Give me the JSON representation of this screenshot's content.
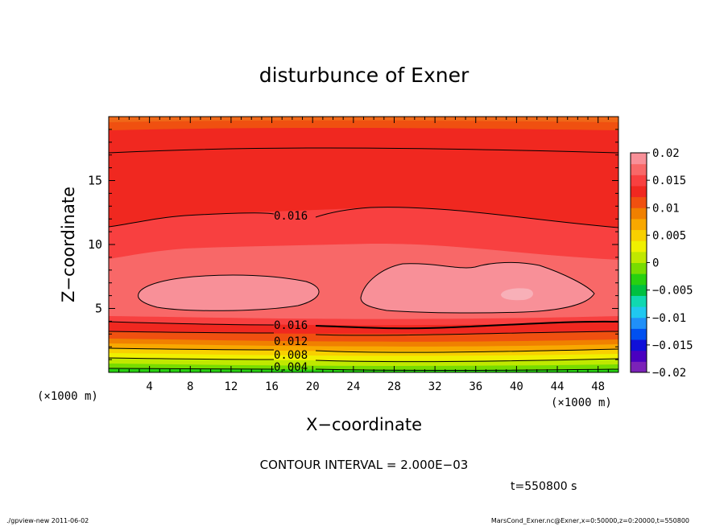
{
  "chart_data": {
    "type": "contour",
    "title": "disturbunce of Exner",
    "xlabel": "X−coordinate",
    "ylabel": "Z−coordinate",
    "x_unit_label": "(×1000 m)",
    "y_unit_label": "(×1000 m)",
    "xlim": [
      0,
      50
    ],
    "ylim": [
      0,
      20
    ],
    "x_ticks": [
      "4",
      "8",
      "12",
      "16",
      "20",
      "24",
      "28",
      "32",
      "36",
      "40",
      "44",
      "48"
    ],
    "y_ticks": [
      "5",
      "10",
      "15"
    ],
    "colorbar": {
      "range": [
        -0.02,
        0.02
      ],
      "labels": [
        "0.02",
        "0.015",
        "0.01",
        "0.005",
        "0",
        "−0.005",
        "−0.01",
        "−0.015",
        "−0.02"
      ],
      "colors": [
        "#7B22B8",
        "#4A00C0",
        "#1010D8",
        "#0050F0",
        "#2090F8",
        "#20C8F0",
        "#10D8B0",
        "#00C040",
        "#28D010",
        "#78DC00",
        "#C0E800",
        "#F0F000",
        "#F8D000",
        "#F8A800",
        "#F08000",
        "#F05010",
        "#F02820",
        "#F84040",
        "#F86868",
        "#F89098"
      ]
    },
    "contour_interval_text": "CONTOUR INTERVAL = 2.000E−03",
    "contour_labels": [
      "0.016",
      "0.016",
      "0.012",
      "0.008",
      "0.004"
    ],
    "time_label": "t=550800 s",
    "footer_left": "./gpview-new   2011-06-02",
    "footer_right": "MarsCond_Exner.nc@Exner,x=0:50000,z=0:20000,t=550800"
  }
}
